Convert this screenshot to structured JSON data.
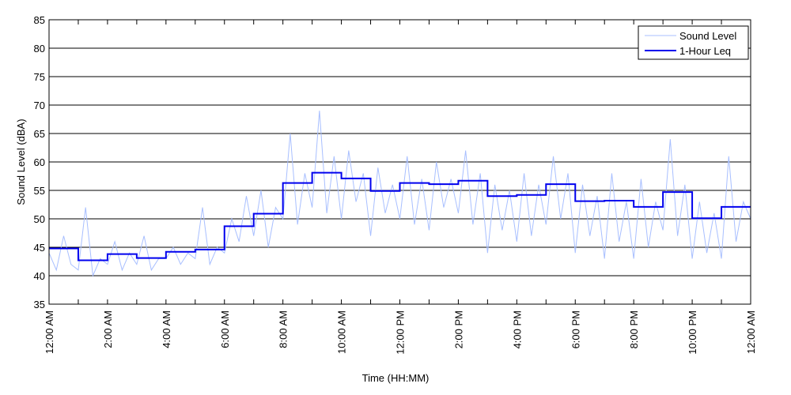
{
  "chart_data": {
    "type": "line",
    "title": "",
    "xlabel": "Time (HH:MM)",
    "ylabel": "Sound Level (dBA)",
    "ylim": [
      35,
      85
    ],
    "yticks": [
      35,
      40,
      45,
      50,
      55,
      60,
      65,
      70,
      75,
      80,
      85
    ],
    "xlim_hours": [
      0,
      24
    ],
    "xtick_labels": [
      "12:00 AM",
      "2:00 AM",
      "4:00 AM",
      "6:00 AM",
      "8:00 AM",
      "10:00 AM",
      "12:00 PM",
      "2:00 PM",
      "4:00 PM",
      "6:00 PM",
      "8:00 PM",
      "10:00 PM",
      "12:00 AM"
    ],
    "grid": "horizontal",
    "legend_position": "top-right",
    "series": [
      {
        "name": "Sound Level",
        "color": "#a8bfff",
        "interval_hours": 0.25,
        "values": [
          44,
          41,
          47,
          42,
          41,
          52,
          40,
          43,
          42,
          46,
          41,
          44,
          42,
          47,
          41,
          43,
          43,
          45,
          42,
          44,
          43,
          52,
          42,
          45,
          44,
          50,
          46,
          54,
          47,
          55,
          45,
          52,
          50,
          65,
          49,
          58,
          52,
          69,
          51,
          61,
          50,
          62,
          53,
          58,
          47,
          59,
          51,
          56,
          50,
          61,
          49,
          57,
          48,
          60,
          52,
          57,
          51,
          62,
          49,
          58,
          44,
          56,
          48,
          55,
          46,
          58,
          47,
          56,
          49,
          61,
          50,
          58,
          44,
          56,
          47,
          54,
          43,
          58,
          46,
          53,
          43,
          57,
          45,
          53,
          48,
          64,
          47,
          56,
          43,
          53,
          44,
          51,
          43,
          61,
          46,
          53,
          50
        ]
      },
      {
        "name": "1-Hour Leq",
        "color": "#0000ee",
        "interval_hours": 1,
        "values": [
          44.8,
          42.7,
          43.8,
          43.1,
          44.2,
          44.6,
          48.7,
          50.9,
          56.3,
          58.1,
          57.1,
          54.9,
          56.3,
          56.1,
          56.7,
          54.0,
          54.2,
          56.1,
          53.1,
          53.2,
          52.1,
          54.7,
          50.1,
          52.1
        ]
      }
    ]
  }
}
